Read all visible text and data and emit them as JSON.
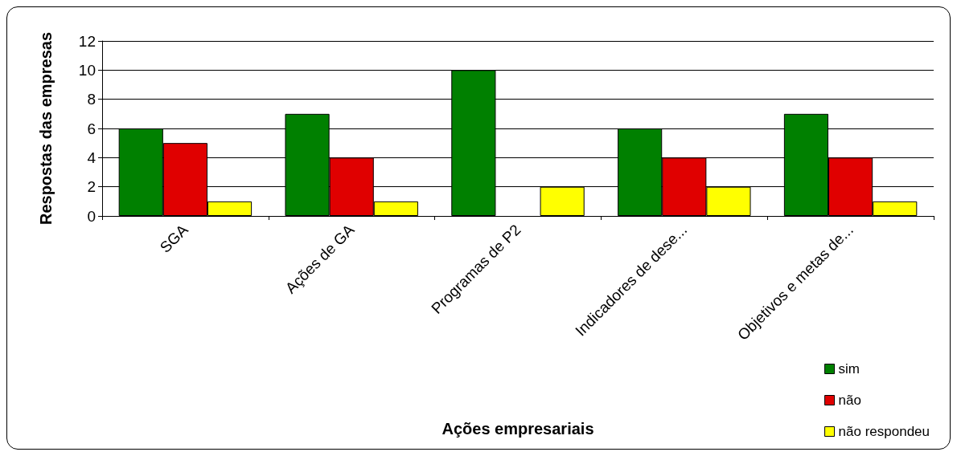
{
  "chart_data": {
    "type": "bar",
    "xlabel": "Ações empresariais",
    "ylabel": "Respostas das empresas",
    "categories": [
      "SGA",
      "Ações de GA",
      "Programas de P2",
      "Indicadores de dese...",
      "Objetivos e metas de..."
    ],
    "series": [
      {
        "name": "sim",
        "color": "#008000",
        "values": [
          6,
          7,
          10,
          6,
          7
        ]
      },
      {
        "name": "não",
        "color": "#e00000",
        "values": [
          5,
          4,
          null,
          4,
          4
        ]
      },
      {
        "name": "não respondeu",
        "color": "#ffff00",
        "values": [
          1,
          1,
          2,
          2,
          1
        ]
      }
    ],
    "ylim": [
      0,
      12
    ],
    "yticks": [
      0,
      2,
      4,
      6,
      8,
      10,
      12
    ],
    "grid": "y",
    "legend": "bottom right"
  }
}
